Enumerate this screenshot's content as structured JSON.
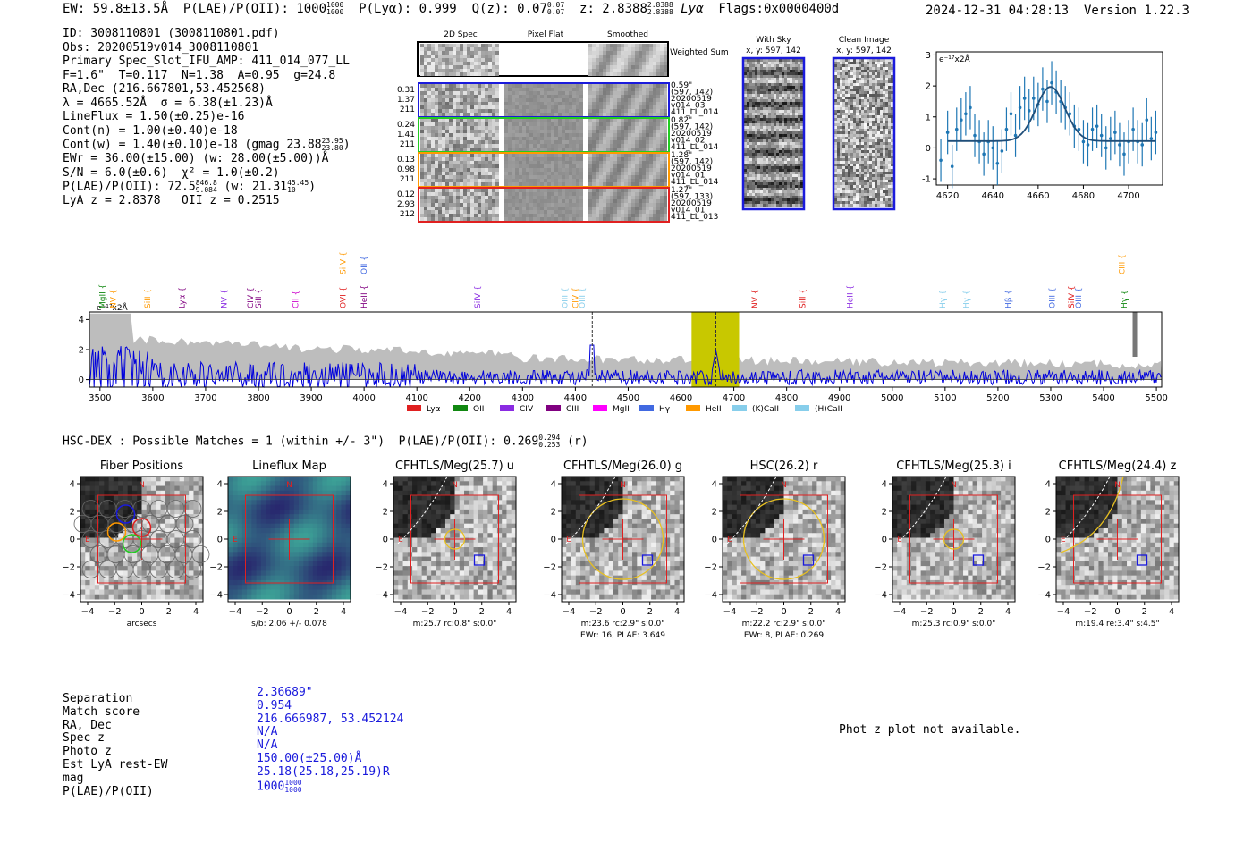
{
  "header": {
    "ew": "EW: 59.8±13.5Å",
    "plae": "P(LAE)/P(OII): 1000",
    "plae_hi": "1000",
    "plae_lo": "1000",
    "plya": "P(Lyα): 0.999",
    "qz": "Q(z): 0.07",
    "qz_hi": "0.07",
    "qz_lo": "0.07",
    "z": "z: 2.8388",
    "z_hi": "2.8388",
    "z_lo": "2.8388",
    "lya": "Lyα",
    "flags": "Flags:0x0000400d",
    "datetime": "2024-12-31 04:28:13",
    "version": "Version 1.22.3"
  },
  "info": {
    "id": "ID: 3008110801 (3008110801.pdf)",
    "obs": "Obs: 20200519v014_3008110801",
    "spec_slot": "Primary Spec_Slot_IFU_AMP: 411_014_077_LL",
    "params": "F=1.6\"  T=0.117  N=1.38  A=0.95  g=24.8",
    "radec": "RA,Dec (216.667801,53.452568)",
    "lambda": "λ = 4665.52Å  σ = 6.38(±1.23)Å",
    "lineflux": "LineFlux = 1.50(±0.25)e-16",
    "contn": "Cont(n) = 1.00(±0.40)e-18",
    "contw": "Cont(w) = 1.40(±0.10)e-18 (gmag 23.88",
    "contw_hi": "23.95",
    "contw_lo": "23.80",
    "ewr": "EWr = 36.00(±15.00) (w: 28.00(±5.00))Å",
    "sn": "S/N = 6.0(±0.6)  χ² = 1.0(±0.2)",
    "plae": "P(LAE)/P(OII): 72.5",
    "plae_hi": "846.8",
    "plae_lo": "9.084",
    "plae_w": "(w: 21.31",
    "plae_w_hi": "45.45",
    "plae_w_lo": "10",
    "lyaz": "LyA z = 2.8378   OII z = 0.2515"
  },
  "spec2d": {
    "col_titles": [
      "2D Spec",
      "Pixel Flat",
      "Smoothed"
    ],
    "weighted_label": "Weighted Sum",
    "rows": [
      {
        "color": "#1a1adc",
        "left": [
          "0.31",
          "1.37",
          "211"
        ],
        "right": [
          "0.59\"",
          "(597, 142)",
          "20200519",
          "v014_03",
          "411_LL_014"
        ]
      },
      {
        "color": "#22cc22",
        "left": [
          "0.24",
          "1.41",
          "211"
        ],
        "right": [
          "0.82\"",
          "(597, 142)",
          "20200519",
          "v014_02",
          "411_LL_014"
        ]
      },
      {
        "color": "#ff9900",
        "left": [
          "0.13",
          "0.98",
          "211"
        ],
        "right": [
          "1.28\"",
          "(597, 142)",
          "20200519",
          "v014_01",
          "411_LL_014"
        ]
      },
      {
        "color": "#e02020",
        "left": [
          "0.12",
          "2.93",
          "212"
        ],
        "right": [
          "1.27\"",
          "(597, 133)",
          "20200519",
          "v014_01",
          "411_LL_013"
        ]
      }
    ]
  },
  "sky": {
    "with_sky_title": "With Sky",
    "with_sky_xy": "x, y: 597, 142",
    "clean_title": "Clean Image",
    "clean_xy": "x, y: 597, 142"
  },
  "chart_data": [
    {
      "type": "scatter",
      "name": "line-fit",
      "yunit_label": "e⁻¹⁷x2Å",
      "xlim": [
        4615,
        4715
      ],
      "ylim": [
        -1.2,
        3.1
      ],
      "xticks": [
        4620,
        4640,
        4660,
        4680,
        4700
      ],
      "yticks": [
        -1,
        0,
        1,
        2,
        3
      ],
      "x": [
        4617,
        4620,
        4622,
        4624,
        4626,
        4628,
        4630,
        4632,
        4634,
        4636,
        4638,
        4640,
        4642,
        4644,
        4646,
        4648,
        4650,
        4652,
        4654,
        4656,
        4658,
        4660,
        4662,
        4664,
        4666,
        4668,
        4670,
        4672,
        4674,
        4676,
        4678,
        4680,
        4682,
        4684,
        4686,
        4688,
        4690,
        4692,
        4694,
        4696,
        4698,
        4700,
        4702,
        4704,
        4706,
        4708,
        4710,
        4712
      ],
      "y": [
        -0.4,
        0.5,
        -0.6,
        0.6,
        0.9,
        1.1,
        1.3,
        0.4,
        0.2,
        -0.2,
        0.2,
        0.0,
        -0.5,
        -0.1,
        0.6,
        1.1,
        0.4,
        1.3,
        1.6,
        1.2,
        1.6,
        1.4,
        1.9,
        1.5,
        2.1,
        1.8,
        1.5,
        1.3,
        1.1,
        0.7,
        0.6,
        0.2,
        0.1,
        0.6,
        0.7,
        0.4,
        0.0,
        0.3,
        0.5,
        0.1,
        -0.2,
        0.2,
        0.6,
        0.2,
        0.1,
        0.9,
        0.3,
        0.5
      ],
      "yerr": 0.7,
      "fit": {
        "center": 4665.5,
        "amp": 1.75,
        "sigma": 6.4,
        "baseline": 0.22
      }
    },
    {
      "type": "line",
      "name": "full-spectrum",
      "yunit_label": "e⁻¹⁷x2Å",
      "xlim": [
        3480,
        5510
      ],
      "ylim": [
        -0.5,
        4.5
      ],
      "xticks": [
        3500,
        3600,
        3700,
        3800,
        3900,
        4000,
        4100,
        4200,
        4300,
        4400,
        4500,
        4600,
        4700,
        4800,
        4900,
        5000,
        5100,
        5200,
        5300,
        5400,
        5500
      ],
      "yticks": [
        0,
        2,
        4
      ],
      "highlight_band": [
        4620,
        4710
      ],
      "dashed_lines": [
        4432,
        4666
      ],
      "legend": [
        {
          "label": "Lyα",
          "color": "#e02020"
        },
        {
          "label": "OII",
          "color": "#118811"
        },
        {
          "label": "CIV",
          "color": "#8a2be2"
        },
        {
          "label": "CIII",
          "color": "#800080"
        },
        {
          "label": "MgII",
          "color": "#ff00ff"
        },
        {
          "label": "Hγ",
          "color": "#4169e1"
        },
        {
          "label": "HeII",
          "color": "#ff9900"
        },
        {
          "label": "(K)CaII",
          "color": "#87ceeb"
        },
        {
          "label": "(H)CaII",
          "color": "#87ceeb"
        }
      ],
      "line_marks": [
        {
          "label": "MgII",
          "x": 3510,
          "color": "#118811",
          "row": 0
        },
        {
          "label": "NV",
          "x": 3530,
          "color": "#ff9900",
          "row": 0
        },
        {
          "label": "SiII",
          "x": 3595,
          "color": "#ff9900",
          "row": 0
        },
        {
          "label": "Lyα",
          "x": 3660,
          "color": "#800080",
          "row": 0
        },
        {
          "label": "NV",
          "x": 3740,
          "color": "#8a2be2",
          "row": 0
        },
        {
          "label": "CIV",
          "x": 3790,
          "color": "#800080",
          "row": 0
        },
        {
          "label": "SiII",
          "x": 3805,
          "color": "#800080",
          "row": 0
        },
        {
          "label": "CII",
          "x": 3875,
          "color": "#cc00cc",
          "row": 0
        },
        {
          "label": "OVI",
          "x": 3965,
          "color": "#e02020",
          "row": 0
        },
        {
          "label": "HeII",
          "x": 4005,
          "color": "#800080",
          "row": 0
        },
        {
          "label": "SiIV",
          "x": 3965,
          "color": "#ff9900",
          "row": 1
        },
        {
          "label": "OII",
          "x": 4005,
          "color": "#4169e1",
          "row": 1
        },
        {
          "label": "SiIV",
          "x": 4220,
          "color": "#8a2be2",
          "row": 0
        },
        {
          "label": "OIII",
          "x": 4385,
          "color": "#87ceeb",
          "row": 0
        },
        {
          "label": "CIV",
          "x": 4405,
          "color": "#ff9900",
          "row": 0
        },
        {
          "label": "OIII",
          "x": 4418,
          "color": "#87ceeb",
          "row": 0
        },
        {
          "label": "NV",
          "x": 4745,
          "color": "#e02020",
          "row": 0
        },
        {
          "label": "SiII",
          "x": 4835,
          "color": "#e02020",
          "row": 0
        },
        {
          "label": "HeII",
          "x": 4925,
          "color": "#8a2be2",
          "row": 0
        },
        {
          "label": "Hγ",
          "x": 5100,
          "color": "#87ceeb",
          "row": 0
        },
        {
          "label": "Hγ",
          "x": 5145,
          "color": "#87ceeb",
          "row": 0
        },
        {
          "label": "Hβ",
          "x": 5225,
          "color": "#4169e1",
          "row": 0
        },
        {
          "label": "OIII",
          "x": 5308,
          "color": "#4169e1",
          "row": 0
        },
        {
          "label": "SiIV",
          "x": 5344,
          "color": "#e02020",
          "row": 0
        },
        {
          "label": "OIII",
          "x": 5358,
          "color": "#4169e1",
          "row": 0
        },
        {
          "label": "CIII",
          "x": 5440,
          "color": "#ff9900",
          "row": 1
        },
        {
          "label": "Hγ",
          "x": 5444,
          "color": "#118811",
          "row": 0
        }
      ]
    }
  ],
  "hsc": {
    "title_prefix": "HSC-DEX : Possible Matches = 1 (within +/- 3\")  P(LAE)/P(OII): 0.269",
    "title_hi": "0.294",
    "title_lo": "0.253",
    "title_suffix": "(r)"
  },
  "cutouts": [
    {
      "title": "Fiber Positions",
      "xlabel": "arcsecs",
      "sub2": "",
      "kind": "fiber"
    },
    {
      "title": "Lineflux Map",
      "xlabel": "s/b: 2.06 +/- 0.078",
      "sub2": "",
      "kind": "lineflux"
    },
    {
      "title": "CFHTLS/Meg(25.7) u",
      "xlabel": "m:25.7 rc:0.8\"  s:0.0\"",
      "sub2": "",
      "kind": "u"
    },
    {
      "title": "CFHTLS/Meg(26.0) g",
      "xlabel": "m:23.6 rc:2.9\"  s:0.0\"",
      "sub2": "EWr: 16, PLAE: 3.649",
      "kind": "g"
    },
    {
      "title": "HSC(26.2) r",
      "xlabel": "m:22.2 rc:2.9\"  s:0.0\"",
      "sub2": "EWr: 8, PLAE: 0.269",
      "kind": "r"
    },
    {
      "title": "CFHTLS/Meg(25.3) i",
      "xlabel": "m:25.3 rc:0.9\"  s:0.0\"",
      "sub2": "",
      "kind": "i"
    },
    {
      "title": "CFHTLS/Meg(24.4) z",
      "xlabel": "m:19.4  re:3.4\"  s:4.5\"",
      "sub2": "",
      "kind": "z"
    }
  ],
  "cutout_ticks": [
    "-4",
    "-2",
    "0",
    "2",
    "4"
  ],
  "compass": {
    "n": "N",
    "e": "E"
  },
  "match": {
    "labels": [
      "Separation",
      "Match score",
      "RA, Dec",
      "Spec z",
      "Photo z",
      "Est LyA rest-EW",
      "mag",
      "P(LAE)/P(OII)"
    ],
    "values": [
      "2.36689\"",
      "0.954",
      "216.666987, 53.452124",
      "N/A",
      "N/A",
      "150.00(±25.00)Å",
      "25.18(25.18,25.19)R",
      "1000"
    ],
    "plae_hi": "1000",
    "plae_lo": "1000"
  },
  "photz_note": "Phot z plot not available."
}
